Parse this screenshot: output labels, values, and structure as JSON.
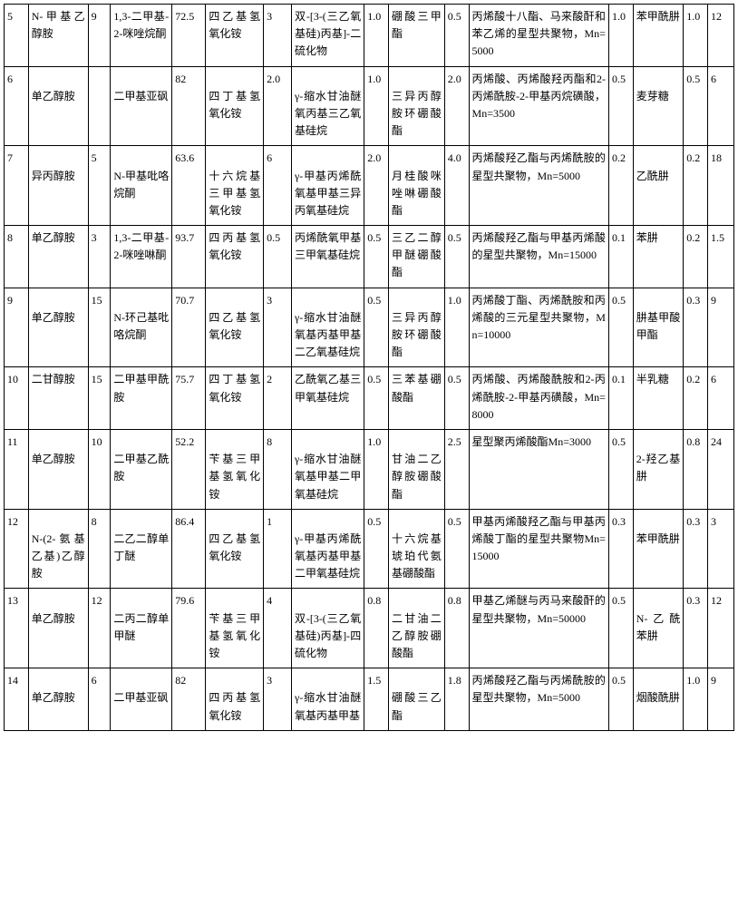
{
  "table": {
    "col_count": 16,
    "rows": [
      {
        "lead_blank": false,
        "cells": [
          "5",
          "N-甲基乙醇胺",
          "9",
          "1,3-二甲基-2-咪唑烷酮",
          "72.5",
          "四乙基氢氧化铵",
          "3",
          "双-[3-(三乙氧基硅)丙基]-二硫化物",
          "1.0",
          "硼酸三甲酯",
          "0.5",
          "丙烯酸十八酯、马来酸酐和苯乙烯的星型共聚物，Mn=5000",
          "1.0",
          "苯甲酰肼",
          "1.0",
          "12"
        ]
      },
      {
        "lead_blank": true,
        "cells": [
          "6",
          "单乙醇胺",
          "",
          "二甲基亚砜",
          "82",
          "四丁基氢氧化铵",
          "2.0",
          "γ-缩水甘油醚氧丙基三乙氧基硅烷",
          "1.0",
          "三异丙醇胺环硼酸酯",
          "2.0",
          "丙烯酸、丙烯酸羟丙酯和2-丙烯酰胺-2-甲基丙烷磺酸，Mn=3500",
          "0.5",
          "麦芽糖",
          "0.5",
          "6"
        ]
      },
      {
        "lead_blank": true,
        "cells": [
          "7",
          "异丙醇胺",
          "5",
          "N-甲基吡咯烷酮",
          "63.6",
          "十六烷基三甲基氢氧化铵",
          "6",
          "γ-甲基丙烯酰氧基甲基三异丙氧基硅烷",
          "2.0",
          "月桂酸咪唑啉硼酸酯",
          "4.0",
          "丙烯酸羟乙酯与丙烯酰胺的星型共聚物，Mn=5000",
          "0.2",
          "乙酰肼",
          "0.2",
          "18"
        ]
      },
      {
        "lead_blank": false,
        "cells": [
          "8",
          "单乙醇胺",
          "3",
          "1,3-二甲基-2-咪唑啉酮",
          "93.7",
          "四丙基氢氧化铵",
          "0.5",
          "丙烯酰氧甲基三甲氧基硅烷",
          "0.5",
          "三乙二醇甲醚硼酸酯",
          "0.5",
          "丙烯酸羟乙酯与甲基丙烯酸的星型共聚物，Mn=15000",
          "0.1",
          "苯肼",
          "0.2",
          "1.5"
        ]
      },
      {
        "lead_blank": true,
        "cells": [
          "9",
          "单乙醇胺",
          "15",
          "N-环己基吡咯烷酮",
          "70.7",
          "四乙基氢氧化铵",
          "3",
          "γ-缩水甘油醚氧基丙基甲基二乙氧基硅烷",
          "0.5",
          "三异丙醇胺环硼酸酯",
          "1.0",
          "丙烯酸丁酯、丙烯酰胺和丙烯酸的三元星型共聚物，Mn=10000",
          "0.5",
          "肼基甲酸甲酯",
          "0.3",
          "9"
        ]
      },
      {
        "lead_blank": false,
        "cells": [
          "10",
          "二甘醇胺",
          "15",
          "二甲基甲酰胺",
          "75.7",
          "四丁基氢氧化铵",
          "2",
          "乙酰氧乙基三甲氧基硅烷",
          "0.5",
          "三苯基硼酸酯",
          "0.5",
          "丙烯酸、丙烯酸酰胺和2-丙烯酰胺-2-甲基丙磺酸，Mn=8000",
          "0.1",
          "半乳糖",
          "0.2",
          "6"
        ]
      },
      {
        "lead_blank": true,
        "cells": [
          "11",
          "单乙醇胺",
          "10",
          "二甲基乙酰胺",
          "52.2",
          "苄基三甲基氢氧化铵",
          "8",
          "γ-缩水甘油醚氧基甲基二甲氧基硅烷",
          "1.0",
          "甘油二乙醇胺硼酸酯",
          "2.5",
          "星型聚丙烯酸酯Mn=3000",
          "0.5",
          "2-羟乙基肼",
          "0.8",
          "24"
        ]
      },
      {
        "lead_blank": true,
        "cells": [
          "12",
          "N-(2-氨基乙基)乙醇胺",
          "8",
          "二乙二醇单丁醚",
          "86.4",
          "四乙基氢氧化铵",
          "1",
          "γ-甲基丙烯酰氧基丙基甲基二甲氧基硅烷",
          "0.5",
          "十六烷基琥珀代氨基硼酸酯",
          "0.5",
          "甲基丙烯酸羟乙酯与甲基丙烯酸丁酯的星型共聚物Mn=15000",
          "0.3",
          "苯甲酰肼",
          "0.3",
          "3"
        ]
      },
      {
        "lead_blank": true,
        "cells": [
          "13",
          "单乙醇胺",
          "12",
          "二丙二醇单甲醚",
          "79.6",
          "苄基三甲基氢氧化铵",
          "4",
          "双-[3-(三乙氧基硅)丙基]-四硫化物",
          "0.8",
          "二甘油二乙醇胺硼酸酯",
          "0.8",
          "甲基乙烯醚与丙马来酸酐的星型共聚物，Mn=50000",
          "0.5",
          "N-乙酰苯肼",
          "0.3",
          "12"
        ]
      },
      {
        "lead_blank": true,
        "cells": [
          "14",
          "单乙醇胺",
          "6",
          "二甲基亚砜",
          "82",
          "四丙基氢氧化铵",
          "3",
          "γ-缩水甘油醚氧基丙基甲基",
          "1.5",
          "硼酸三乙酯",
          "1.8",
          "丙烯酸羟乙酯与丙烯酰胺的星型共聚物，Mn=5000",
          "0.5",
          "烟酸酰肼",
          "1.0",
          "9"
        ]
      }
    ]
  }
}
